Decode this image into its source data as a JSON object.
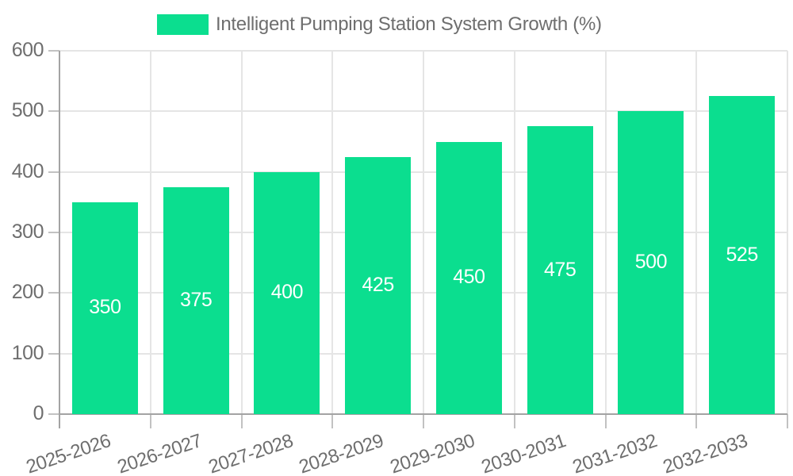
{
  "chart_data": {
    "type": "bar",
    "title": "Intelligent Pumping Station System Growth (%)",
    "categories": [
      "2025-2026",
      "2026-2027",
      "2027-2028",
      "2028-2029",
      "2029-2030",
      "2030-2031",
      "2031-2032",
      "2032-2033"
    ],
    "series": [
      {
        "name": "Intelligent Pumping Station System Growth (%)",
        "values": [
          350,
          375,
          400,
          425,
          450,
          475,
          500,
          525
        ]
      }
    ],
    "value_labels": [
      "350",
      "375",
      "400",
      "425",
      "450",
      "475",
      "500",
      "525"
    ],
    "xlabel": "",
    "ylabel": "",
    "ylim": [
      0,
      600
    ],
    "ytick_step": 100,
    "grid": "on",
    "legend_position": "top",
    "colors": {
      "bar": "#0bde8f",
      "value_label": "#ffffff",
      "axis_line": "#a3a3a3",
      "grid_line": "#e5e5e5",
      "tick_mark": "#c2c2c2",
      "axis_text": "#6e6e6e",
      "legend_text": "#6e6e6e",
      "background": "#ffffff"
    }
  }
}
